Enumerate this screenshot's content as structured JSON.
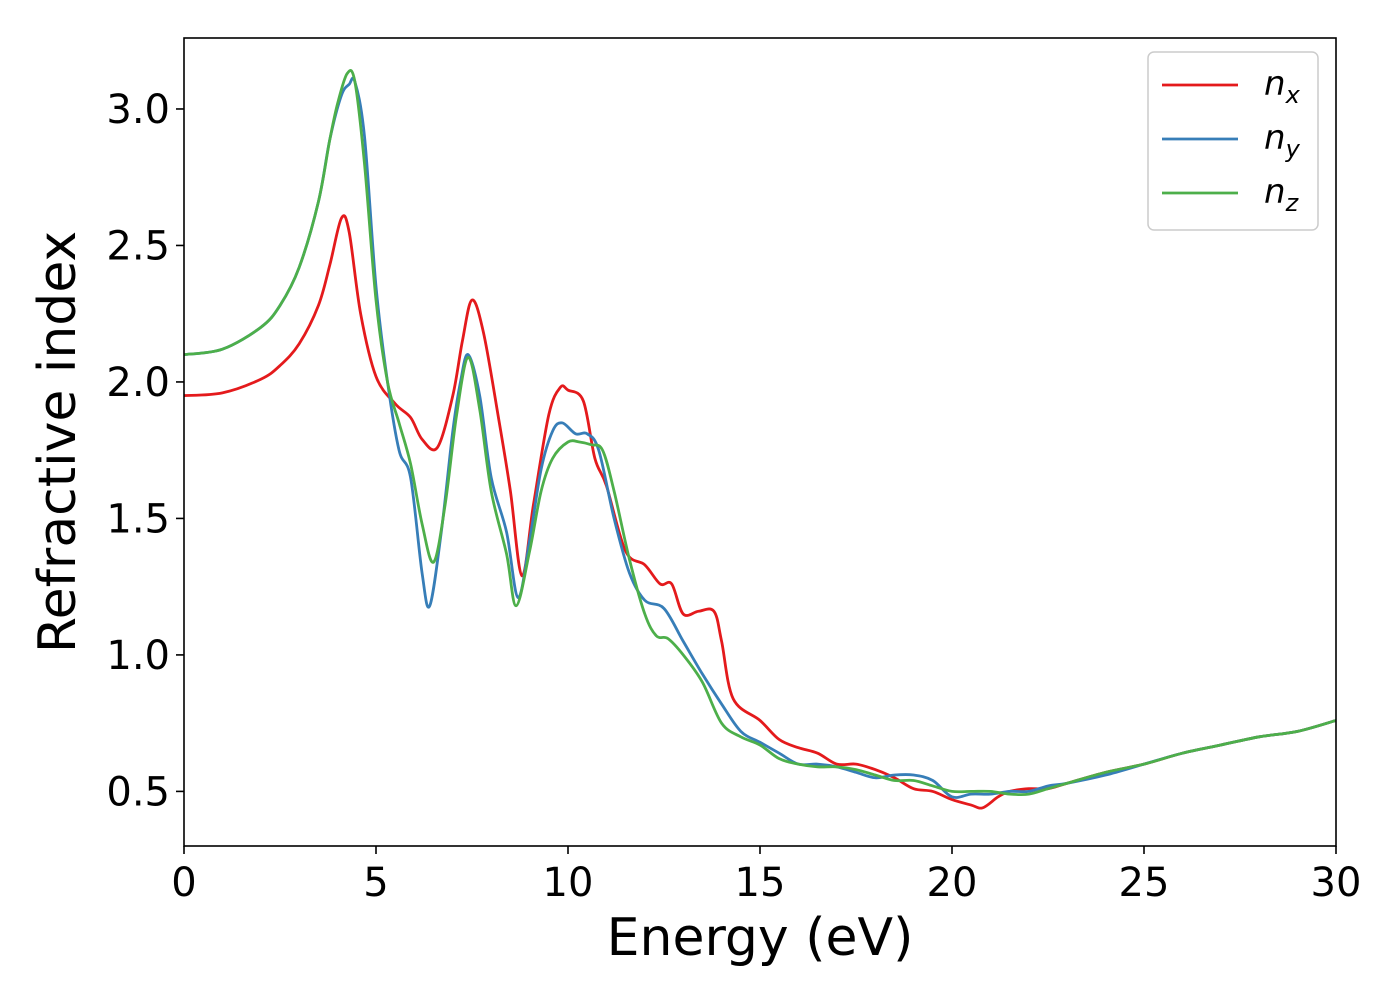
{
  "chart_data": {
    "type": "line",
    "xlabel": "Energy (eV)",
    "ylabel": "Refractive index",
    "xlim": [
      0,
      30
    ],
    "ylim": [
      0.3,
      3.26
    ],
    "xticks": [
      0,
      5,
      10,
      15,
      20,
      25,
      30
    ],
    "xtick_labels": [
      "0",
      "5",
      "10",
      "15",
      "20",
      "25",
      "30"
    ],
    "yticks": [
      0.5,
      1.0,
      1.5,
      2.0,
      2.5,
      3.0
    ],
    "ytick_labels": [
      "0.5",
      "1.0",
      "1.5",
      "2.0",
      "2.5",
      "3.0"
    ],
    "grid": false,
    "legend_position": "top-right",
    "series": [
      {
        "name": "n",
        "subscript": "x",
        "color": "#e41a1c",
        "x": [
          0,
          1,
          2,
          2.5,
          3,
          3.5,
          3.8,
          4.1,
          4.3,
          4.6,
          5.0,
          5.5,
          5.9,
          6.2,
          6.6,
          7.0,
          7.25,
          7.5,
          7.8,
          8.2,
          8.5,
          8.8,
          9.1,
          9.5,
          9.8,
          10.0,
          10.4,
          10.7,
          11.0,
          11.5,
          12.0,
          12.4,
          12.7,
          13.0,
          13.4,
          13.8,
          14.0,
          14.3,
          15.0,
          15.5,
          16.0,
          16.5,
          17.0,
          17.5,
          18.0,
          18.5,
          19.0,
          19.5,
          20.0,
          20.5,
          20.8,
          21.2,
          21.5,
          22.0,
          22.5,
          23.0,
          24.0,
          25.0,
          26.0,
          27.0,
          28.0,
          29.0,
          30.0
        ],
        "y": [
          1.95,
          1.96,
          2.01,
          2.06,
          2.14,
          2.28,
          2.43,
          2.6,
          2.55,
          2.25,
          2.02,
          1.92,
          1.87,
          1.79,
          1.76,
          1.95,
          2.15,
          2.3,
          2.18,
          1.86,
          1.6,
          1.29,
          1.55,
          1.88,
          1.98,
          1.97,
          1.93,
          1.72,
          1.62,
          1.38,
          1.33,
          1.26,
          1.26,
          1.15,
          1.16,
          1.16,
          1.05,
          0.84,
          0.76,
          0.69,
          0.66,
          0.64,
          0.6,
          0.6,
          0.58,
          0.55,
          0.51,
          0.5,
          0.47,
          0.45,
          0.44,
          0.48,
          0.5,
          0.51,
          0.51,
          0.53,
          0.57,
          0.6,
          0.64,
          0.67,
          0.7,
          0.72,
          0.76
        ]
      },
      {
        "name": "n",
        "subscript": "y",
        "color": "#377eb8",
        "x": [
          0,
          1,
          2,
          2.5,
          3,
          3.5,
          3.8,
          4.1,
          4.3,
          4.45,
          4.7,
          5.0,
          5.3,
          5.6,
          5.9,
          6.2,
          6.4,
          6.7,
          7.0,
          7.2,
          7.4,
          7.7,
          8.0,
          8.4,
          8.7,
          9.0,
          9.3,
          9.6,
          9.85,
          10.2,
          10.5,
          10.8,
          11.2,
          11.6,
          12.0,
          12.5,
          13.0,
          13.5,
          14.0,
          14.5,
          15.0,
          15.5,
          16.0,
          16.5,
          17.0,
          17.5,
          18.0,
          18.5,
          19.0,
          19.5,
          20.0,
          20.5,
          21.0,
          21.5,
          22.0,
          22.5,
          23.0,
          24.0,
          25.0,
          26.0,
          27.0,
          28.0,
          29.0,
          30.0
        ],
        "y": [
          2.1,
          2.12,
          2.2,
          2.28,
          2.42,
          2.66,
          2.89,
          3.05,
          3.09,
          3.1,
          2.9,
          2.35,
          2.0,
          1.75,
          1.65,
          1.3,
          1.18,
          1.45,
          1.82,
          2.0,
          2.1,
          1.95,
          1.65,
          1.45,
          1.21,
          1.42,
          1.68,
          1.82,
          1.85,
          1.81,
          1.81,
          1.75,
          1.5,
          1.3,
          1.2,
          1.17,
          1.05,
          0.93,
          0.82,
          0.72,
          0.68,
          0.64,
          0.6,
          0.6,
          0.59,
          0.57,
          0.55,
          0.56,
          0.56,
          0.54,
          0.48,
          0.49,
          0.49,
          0.5,
          0.5,
          0.52,
          0.53,
          0.56,
          0.6,
          0.64,
          0.67,
          0.7,
          0.72,
          0.76
        ]
      },
      {
        "name": "n",
        "subscript": "z",
        "color": "#4daf4a",
        "x": [
          0,
          1,
          2,
          2.5,
          3,
          3.5,
          3.8,
          4.0,
          4.25,
          4.45,
          4.7,
          5.0,
          5.3,
          5.6,
          5.9,
          6.2,
          6.5,
          6.8,
          7.1,
          7.4,
          7.7,
          8.0,
          8.4,
          8.65,
          9.0,
          9.3,
          9.6,
          10.0,
          10.3,
          10.6,
          10.9,
          11.2,
          11.6,
          12.0,
          12.3,
          12.6,
          13.0,
          13.5,
          14.0,
          14.5,
          15.0,
          15.5,
          16.0,
          16.5,
          17.0,
          17.5,
          18.0,
          18.5,
          19.0,
          19.5,
          20.0,
          20.5,
          21.0,
          21.5,
          22.0,
          22.5,
          23.0,
          24.0,
          25.0,
          26.0,
          27.0,
          28.0,
          29.0,
          30.0
        ],
        "y": [
          2.1,
          2.12,
          2.2,
          2.28,
          2.42,
          2.66,
          2.89,
          3.02,
          3.13,
          3.1,
          2.8,
          2.3,
          2.0,
          1.85,
          1.7,
          1.48,
          1.34,
          1.55,
          1.88,
          2.09,
          1.9,
          1.6,
          1.37,
          1.18,
          1.38,
          1.6,
          1.72,
          1.78,
          1.78,
          1.77,
          1.75,
          1.6,
          1.35,
          1.15,
          1.07,
          1.06,
          1.0,
          0.9,
          0.75,
          0.7,
          0.67,
          0.62,
          0.6,
          0.59,
          0.59,
          0.58,
          0.56,
          0.54,
          0.54,
          0.52,
          0.5,
          0.5,
          0.5,
          0.49,
          0.49,
          0.51,
          0.53,
          0.57,
          0.6,
          0.64,
          0.67,
          0.7,
          0.72,
          0.76
        ]
      }
    ]
  }
}
